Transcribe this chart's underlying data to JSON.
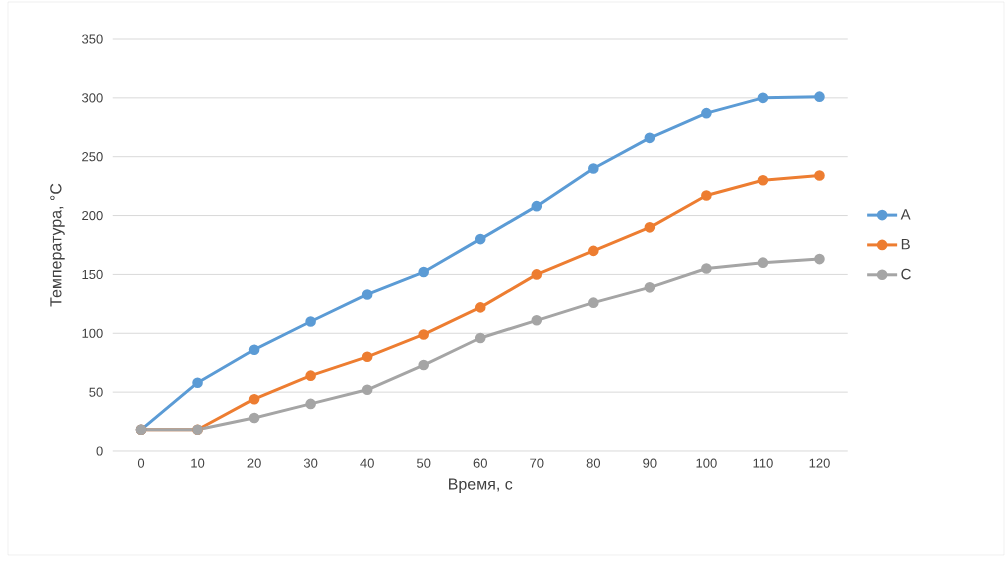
{
  "chart_data": {
    "type": "line",
    "xlabel": "Время, с",
    "ylabel": "Температура, °C",
    "categories": [
      "0",
      "10",
      "20",
      "30",
      "40",
      "50",
      "60",
      "70",
      "80",
      "90",
      "100",
      "110",
      "120"
    ],
    "series": [
      {
        "name": "A",
        "color": "#5b9bd5",
        "values": [
          18,
          58,
          86,
          110,
          133,
          152,
          180,
          208,
          240,
          266,
          287,
          300,
          301
        ]
      },
      {
        "name": "B",
        "color": "#ed7d31",
        "values": [
          18,
          18,
          44,
          64,
          80,
          99,
          122,
          150,
          170,
          190,
          217,
          230,
          234
        ]
      },
      {
        "name": "C",
        "color": "#a5a5a5",
        "values": [
          18,
          18,
          28,
          40,
          52,
          73,
          96,
          111,
          126,
          139,
          155,
          160,
          163
        ]
      }
    ],
    "ylim": [
      0,
      350
    ],
    "yticks": [
      0,
      50,
      100,
      150,
      200,
      250,
      300,
      350
    ],
    "grid": "y",
    "legend": "right",
    "marker": "circle",
    "line_style": "solid"
  }
}
